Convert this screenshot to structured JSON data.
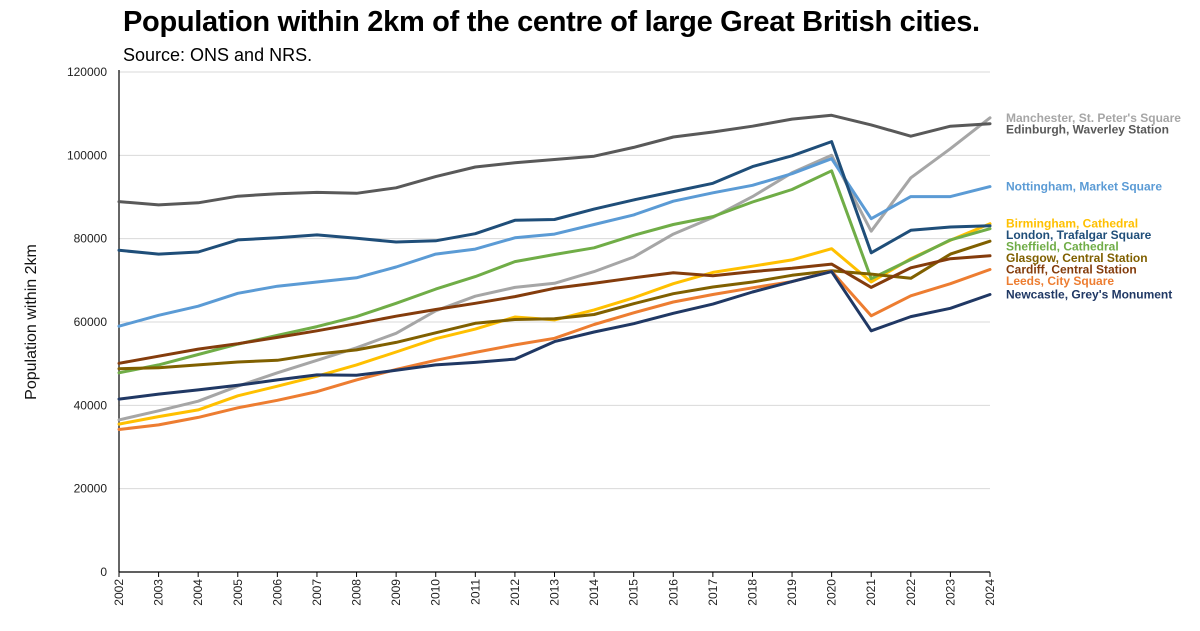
{
  "chart_data": {
    "type": "line",
    "title": "Population within 2km of the centre of large Great British cities.",
    "subtitle": "Source: ONS and NRS.",
    "xlabel": "",
    "ylabel": "Population within 2km",
    "ylim": [
      0,
      120000
    ],
    "yticks": [
      "0",
      "20000",
      "40000",
      "60000",
      "80000",
      "100000",
      "120000"
    ],
    "grid": true,
    "x": [
      "2002",
      "2003",
      "2004",
      "2005",
      "2006",
      "2007",
      "2008",
      "2009",
      "2010",
      "2011",
      "2012",
      "2013",
      "2014",
      "2015",
      "2016",
      "2017",
      "2018",
      "2019",
      "2020",
      "2021",
      "2022",
      "2023",
      "2024"
    ],
    "series": [
      {
        "name": "Manchester, St. Peter's Square",
        "color": "#a6a6a6",
        "values": [
          36500,
          38700,
          41000,
          44600,
          47800,
          50800,
          53800,
          57300,
          62700,
          66200,
          68300,
          69300,
          72100,
          75600,
          81100,
          85100,
          90100,
          95800,
          100000,
          81800,
          94600,
          101600,
          109000
        ]
      },
      {
        "name": "Edinburgh, Waverley Station",
        "color": "#595959",
        "values": [
          88900,
          88100,
          88600,
          90200,
          90800,
          91100,
          90900,
          92200,
          94900,
          97200,
          98200,
          99000,
          99800,
          101900,
          104400,
          105600,
          107000,
          108700,
          109600,
          107300,
          104600,
          107000,
          107600
        ]
      },
      {
        "name": "Nottingham, Market Square",
        "color": "#5b9bd5",
        "values": [
          59000,
          61600,
          63800,
          66900,
          68600,
          69600,
          70600,
          73200,
          76300,
          77500,
          80200,
          81100,
          83400,
          85700,
          89000,
          91000,
          92800,
          95600,
          99200,
          84800,
          90100,
          90100,
          92500
        ]
      },
      {
        "name": "Birmingham, Cathedral",
        "color": "#ffc000",
        "values": [
          35500,
          37300,
          38900,
          42300,
          44600,
          47000,
          49700,
          52800,
          56000,
          58300,
          61200,
          60500,
          62900,
          65800,
          69200,
          71900,
          73400,
          74900,
          77600,
          69600,
          75200,
          79600,
          83600
        ]
      },
      {
        "name": "London, Trafalgar Square",
        "color": "#1f4e79",
        "values": [
          77200,
          76300,
          76800,
          79700,
          80200,
          80900,
          80100,
          79200,
          79500,
          81200,
          84400,
          84600,
          87100,
          89300,
          91300,
          93300,
          97300,
          99900,
          103300,
          76600,
          82000,
          82800,
          83100
        ]
      },
      {
        "name": "Sheffield, Cathedral",
        "color": "#70ad47",
        "values": [
          47800,
          49700,
          52200,
          54700,
          56800,
          58900,
          61300,
          64500,
          67900,
          70900,
          74500,
          76200,
          77800,
          80800,
          83400,
          85300,
          88800,
          91800,
          96300,
          70400,
          75000,
          79700,
          82400
        ]
      },
      {
        "name": "Glasgow, Central Station",
        "color": "#806000",
        "values": [
          48800,
          49000,
          49700,
          50400,
          50800,
          52300,
          53300,
          55100,
          57400,
          59700,
          60600,
          60800,
          61800,
          64400,
          66800,
          68400,
          69600,
          71200,
          72300,
          71500,
          70500,
          76300,
          79400
        ]
      },
      {
        "name": "Cardiff, Central Station",
        "color": "#843c0c",
        "values": [
          50100,
          51800,
          53500,
          54800,
          56300,
          57900,
          59600,
          61400,
          63000,
          64500,
          66100,
          68100,
          69300,
          70600,
          71800,
          71100,
          72100,
          72900,
          73900,
          68300,
          73000,
          75200,
          75900
        ]
      },
      {
        "name": "Leeds, City Square",
        "color": "#ed7d31",
        "values": [
          34200,
          35300,
          37100,
          39400,
          41200,
          43300,
          46100,
          48600,
          50800,
          52700,
          54500,
          56100,
          59400,
          62200,
          64800,
          66600,
          68200,
          69700,
          72200,
          61500,
          66300,
          69200,
          72600
        ]
      },
      {
        "name": "Newcastle, Grey's Monument",
        "color": "#203864",
        "values": [
          41500,
          42700,
          43700,
          44800,
          46100,
          47300,
          47200,
          48400,
          49700,
          50300,
          51100,
          55300,
          57600,
          59600,
          62100,
          64300,
          67200,
          69700,
          72100,
          57900,
          61300,
          63300,
          66600
        ]
      }
    ]
  }
}
